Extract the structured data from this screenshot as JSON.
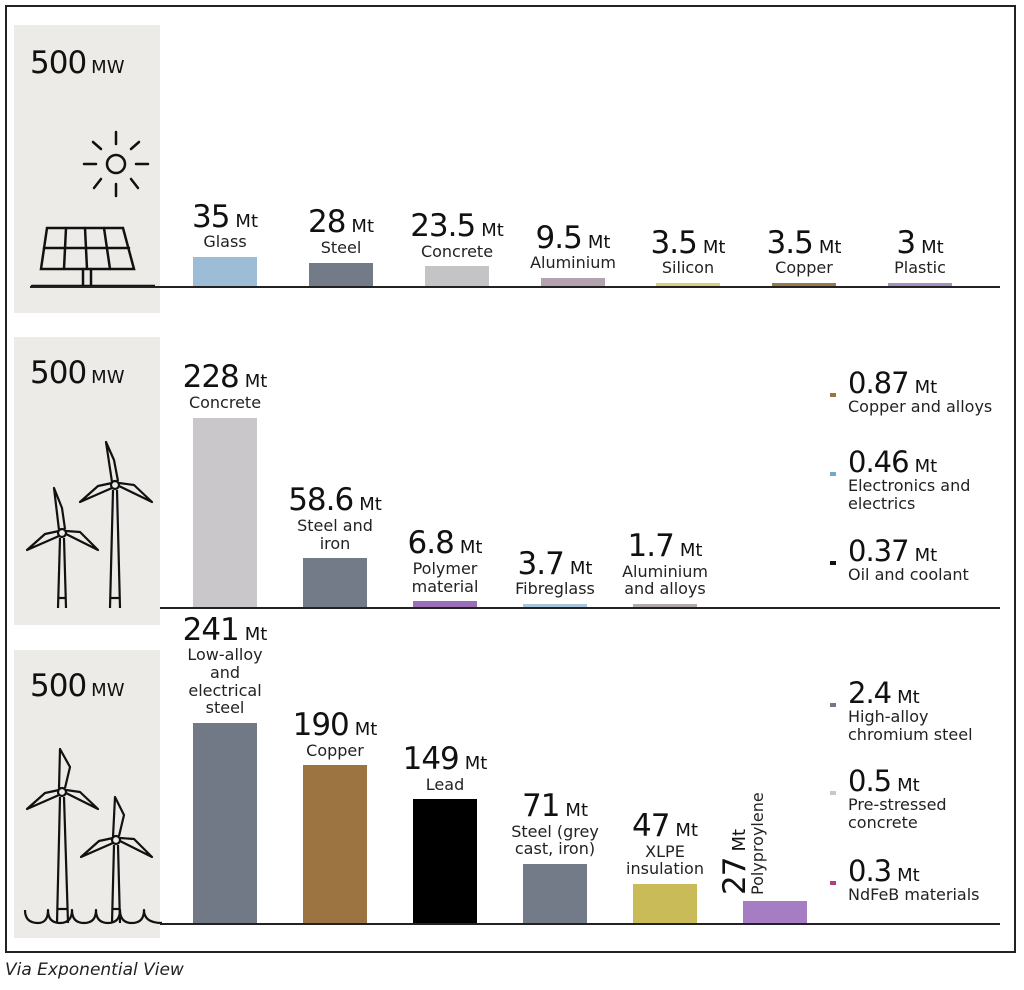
{
  "chart_data": [
    {
      "type": "bar",
      "title": "Solar",
      "capacity": "500",
      "capacity_unit": "MW",
      "unit": "Mt",
      "categories": [
        "Glass",
        "Steel",
        "Concrete",
        "Aluminium",
        "Silicon",
        "Copper",
        "Plastic"
      ],
      "values": [
        35,
        28,
        23.5,
        9.5,
        3.5,
        3.5,
        3
      ],
      "value_labels": [
        "35",
        "28",
        "23.5",
        "9.5",
        "3.5",
        "3.5",
        "3"
      ],
      "colors": [
        "#9dbdd6",
        "#737a88",
        "#c4c3c5",
        "#b3a3ae",
        "#d8d07a",
        "#9b7a4a",
        "#a58fc4"
      ],
      "legend": []
    },
    {
      "type": "bar",
      "title": "Onshore wind",
      "capacity": "500",
      "capacity_unit": "MW",
      "unit": "Mt",
      "categories": [
        "Concrete",
        "Steel and iron",
        "Polymer material",
        "Fibreglass",
        "Aluminium and alloys"
      ],
      "values": [
        228,
        58.6,
        6.8,
        3.7,
        1.7
      ],
      "value_labels": [
        "228",
        "58.6",
        "6.8",
        "3.7",
        "1.7"
      ],
      "colors": [
        "#c9c7ca",
        "#737a88",
        "#9a6fb5",
        "#a9c4dc",
        "#b3aab0"
      ],
      "legend": [
        {
          "value": "0.87",
          "label": "Copper and alloys",
          "color": "#9b7442"
        },
        {
          "value": "0.46",
          "label": "Electronics and electrics",
          "color": "#6fa8c8"
        },
        {
          "value": "0.37",
          "label": "Oil and coolant",
          "color": "#111111"
        }
      ]
    },
    {
      "type": "bar",
      "title": "Offshore wind",
      "capacity": "500",
      "capacity_unit": "MW",
      "unit": "Mt",
      "categories": [
        "Low-alloy and electrical steel",
        "Copper",
        "Lead",
        "Steel (grey cast, iron)",
        "XLPE insulation",
        "Polyproylene"
      ],
      "values": [
        241,
        190,
        149,
        71,
        47,
        27
      ],
      "value_labels": [
        "241",
        "190",
        "149",
        "71",
        "47",
        "27"
      ],
      "colors": [
        "#717886",
        "#9b7442",
        "#000000",
        "#737a88",
        "#c9bb58",
        "#a67dc3"
      ],
      "legend": [
        {
          "value": "2.4",
          "label": "High-alloy chromium steel",
          "color": "#717886"
        },
        {
          "value": "0.5",
          "label": "Pre-stressed concrete",
          "color": "#c9c7ca"
        },
        {
          "value": "0.3",
          "label": "NdFeB materials",
          "color": "#b0407f"
        }
      ]
    }
  ],
  "source": "Via Exponential View"
}
